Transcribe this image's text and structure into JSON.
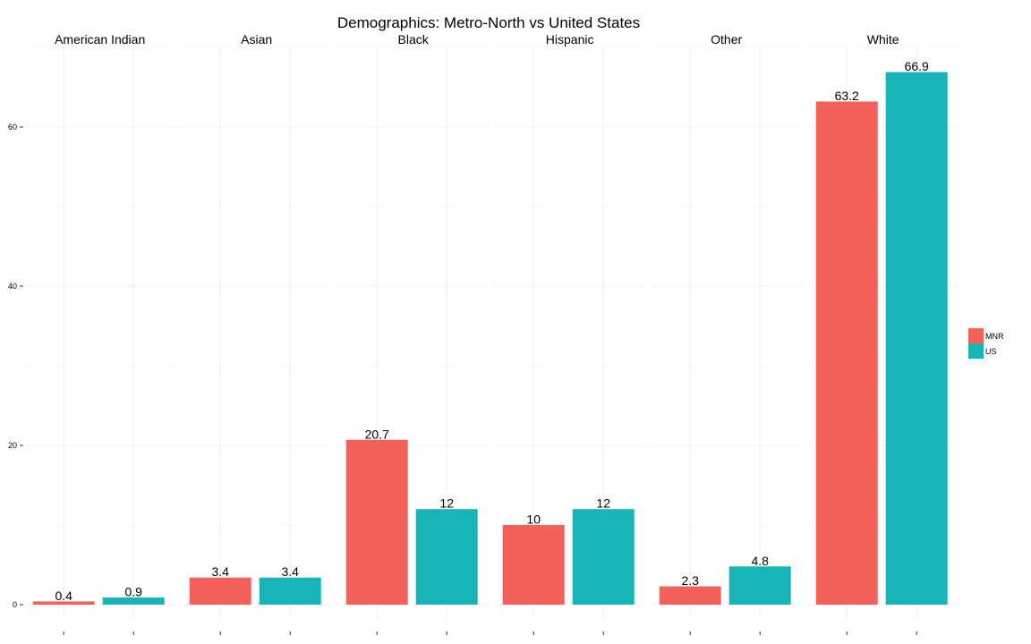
{
  "chart_data": {
    "type": "bar",
    "title": "Demographics: Metro-North vs United States",
    "facets": [
      "American Indian",
      "Asian",
      "Black",
      "Hispanic",
      "Other",
      "White"
    ],
    "series": [
      {
        "name": "MNR",
        "color": "#F4605A",
        "values": [
          0.4,
          3.4,
          20.7,
          10,
          2.3,
          63.2
        ],
        "labels": [
          "0.4",
          "3.4",
          "20.7",
          "10",
          "2.3",
          "63.2"
        ]
      },
      {
        "name": "US",
        "color": "#18B4B8",
        "values": [
          0.9,
          3.4,
          12,
          12,
          4.8,
          66.9
        ],
        "labels": [
          "0.9",
          "3.4",
          "12",
          "12",
          "4.8",
          "66.9"
        ]
      }
    ],
    "y_ticks": [
      0,
      20,
      40,
      60
    ],
    "y_tick_labels": [
      "0",
      "20",
      "40",
      "60"
    ],
    "ylim": [
      0,
      70
    ],
    "xlabel": "",
    "ylabel": "",
    "grid": true,
    "legend_position": "right"
  }
}
